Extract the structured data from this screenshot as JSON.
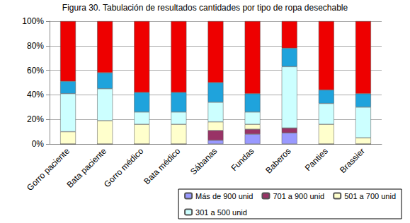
{
  "chart_data": {
    "type": "bar",
    "title": "Figura 30. Tabulación de resultados cantidades por tipo de ropa desechable",
    "stacked": true,
    "grid": true,
    "legend": "bottom-right",
    "categories": [
      "Gorro paciente",
      "Bata paciente",
      "Gorro médico",
      "Bata médico",
      "Sábanas",
      "Fundas",
      "Baberos",
      "Panties",
      "Brassier"
    ],
    "series": [
      {
        "name": "Más de 900 unid",
        "color": "#9999ff",
        "values": [
          0,
          0,
          0,
          0,
          3,
          8,
          9,
          0,
          0
        ]
      },
      {
        "name": "701 a 900 unid",
        "color": "#993366",
        "values": [
          0,
          0,
          0,
          0,
          8,
          4,
          4,
          0,
          0
        ]
      },
      {
        "name": "501 a 700 unid",
        "color": "#ffffcc",
        "values": [
          10,
          19,
          16,
          16,
          7,
          4,
          0,
          16,
          5
        ]
      },
      {
        "name": "301 a 500 unid",
        "color": "#ccffff",
        "values": [
          31,
          26,
          10,
          10,
          16,
          10,
          50,
          17,
          25
        ]
      },
      {
        "color": "#1fa3dc",
        "values": [
          10,
          13,
          16,
          16,
          16,
          15,
          15,
          11,
          11
        ]
      },
      {
        "color": "#ee0000",
        "values": [
          49,
          42,
          58,
          58,
          50,
          59,
          22,
          56,
          59
        ]
      }
    ],
    "ylim": [
      0,
      100
    ],
    "yticks": [
      {
        "value": 0,
        "label": "0%"
      },
      {
        "value": 20,
        "label": "20%"
      },
      {
        "value": 40,
        "label": "40%"
      },
      {
        "value": 60,
        "label": "60%"
      },
      {
        "value": 80,
        "label": "80%"
      },
      {
        "value": 100,
        "label": "100%"
      }
    ]
  }
}
